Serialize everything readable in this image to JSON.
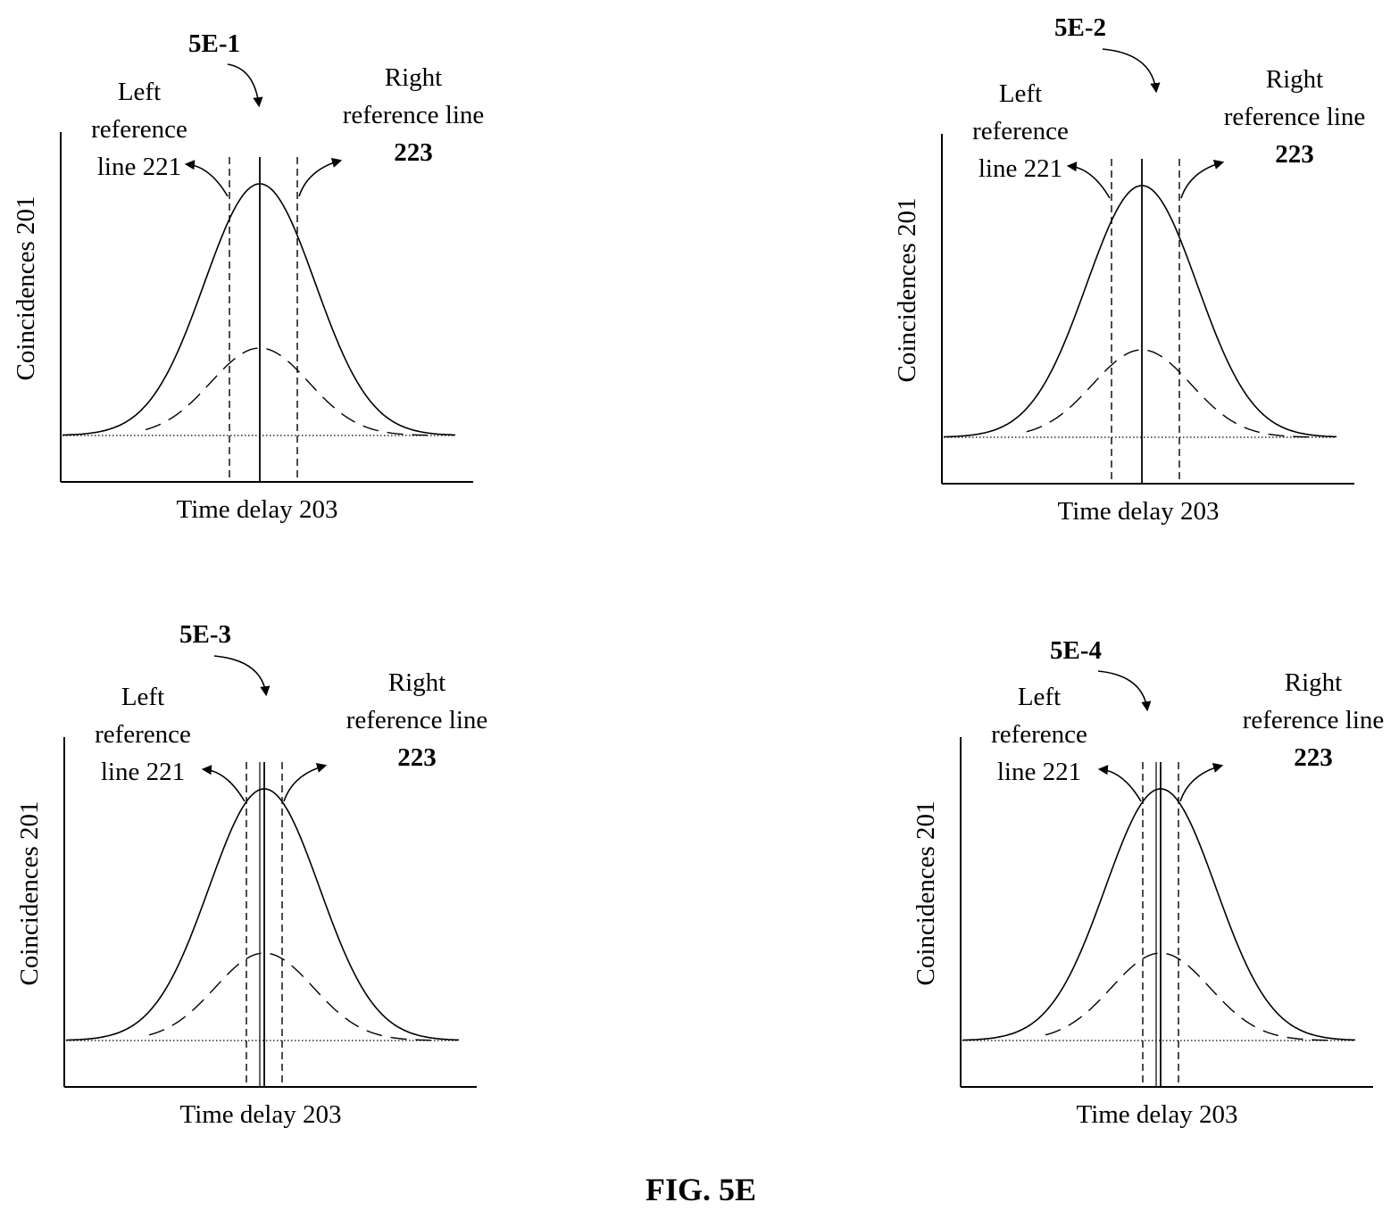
{
  "figure": {
    "caption": "FIG. 5E",
    "panels": [
      {
        "id": "5E-1",
        "ylabel": "Coincidences 201",
        "xlabel": "Time delay 203",
        "left_label": [
          "Left",
          "reference",
          "line 221"
        ],
        "right_label": [
          "Right",
          "reference line",
          "223"
        ],
        "reference_line_spacing": "wide"
      },
      {
        "id": "5E-2",
        "ylabel": "Coincidences 201",
        "xlabel": "Time delay 203",
        "left_label": [
          "Left",
          "reference",
          "line 221"
        ],
        "right_label": [
          "Right",
          "reference line",
          "223"
        ],
        "reference_line_spacing": "wide"
      },
      {
        "id": "5E-3",
        "ylabel": "Coincidences 201",
        "xlabel": "Time delay 203",
        "left_label": [
          "Left",
          "reference",
          "line 221"
        ],
        "right_label": [
          "Right",
          "reference line",
          "223"
        ],
        "reference_line_spacing": "narrow"
      },
      {
        "id": "5E-4",
        "ylabel": "Coincidences 201",
        "xlabel": "Time delay 203",
        "left_label": [
          "Left",
          "reference",
          "line 221"
        ],
        "right_label": [
          "Right",
          "reference line",
          "223"
        ],
        "reference_line_spacing": "narrow"
      }
    ],
    "curves": [
      "solid-gaussian",
      "dashed-gaussian",
      "dotted-baseline"
    ],
    "colors": {
      "ink": "#000000",
      "background": "#ffffff"
    }
  }
}
